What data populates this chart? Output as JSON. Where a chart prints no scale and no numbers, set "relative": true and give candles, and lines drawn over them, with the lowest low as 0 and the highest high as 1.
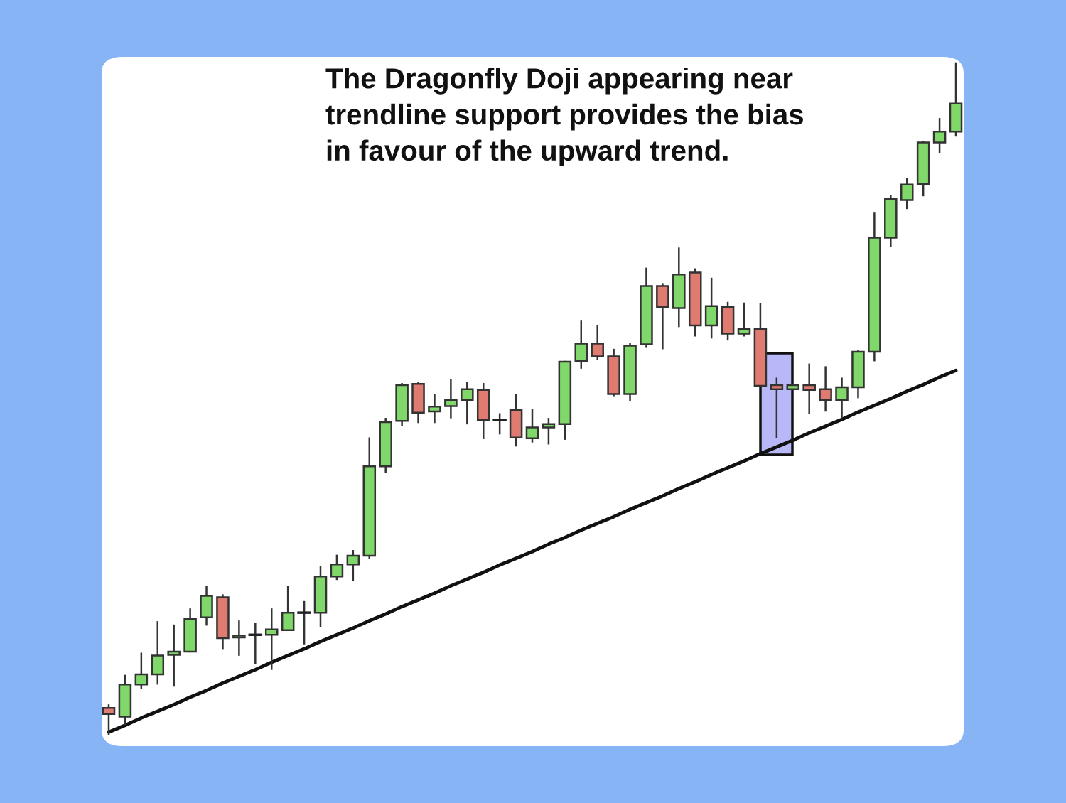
{
  "chart_data": {
    "type": "candlestick",
    "relative": true,
    "title": "The Dragonfly Doji appearing near\ntrendline support provides the bias\nin favour of the upward trend.",
    "categories": [
      null,
      null,
      null,
      null,
      null,
      null,
      null,
      null,
      null,
      null,
      null,
      null,
      null,
      null,
      null,
      null,
      null,
      null,
      null,
      null,
      null,
      null,
      null,
      null,
      null,
      null,
      null,
      null,
      null,
      null,
      null,
      null,
      null,
      null,
      null,
      null,
      null,
      null,
      null,
      null,
      null,
      null,
      null,
      null,
      null,
      null,
      null,
      null,
      null,
      null,
      null,
      null,
      null
    ],
    "ohlc": [
      [
        0.039,
        0.043,
        0.0,
        0.03
      ],
      [
        0.026,
        0.087,
        0.015,
        0.074
      ],
      [
        0.074,
        0.12,
        0.069,
        0.089
      ],
      [
        0.089,
        0.167,
        0.075,
        0.117
      ],
      [
        0.118,
        0.162,
        0.072,
        0.123
      ],
      [
        0.123,
        0.186,
        0.123,
        0.172
      ],
      [
        0.174,
        0.219,
        0.163,
        0.206
      ],
      [
        0.204,
        0.207,
        0.128,
        0.143
      ],
      [
        0.144,
        0.168,
        0.118,
        0.147
      ],
      [
        0.148,
        0.165,
        0.106,
        0.148
      ],
      [
        0.148,
        0.186,
        0.097,
        0.156
      ],
      [
        0.155,
        0.219,
        0.155,
        0.181
      ],
      [
        0.181,
        0.197,
        0.135,
        0.181
      ],
      [
        0.181,
        0.249,
        0.161,
        0.235
      ],
      [
        0.235,
        0.266,
        0.231,
        0.253
      ],
      [
        0.253,
        0.273,
        0.229,
        0.266
      ],
      [
        0.266,
        0.441,
        0.262,
        0.399
      ],
      [
        0.399,
        0.47,
        0.391,
        0.465
      ],
      [
        0.467,
        0.522,
        0.461,
        0.52
      ],
      [
        0.522,
        0.524,
        0.465,
        0.479
      ],
      [
        0.481,
        0.506,
        0.465,
        0.488
      ],
      [
        0.489,
        0.528,
        0.472,
        0.498
      ],
      [
        0.498,
        0.524,
        0.463,
        0.514
      ],
      [
        0.513,
        0.522,
        0.441,
        0.468
      ],
      [
        0.468,
        0.477,
        0.448,
        0.468
      ],
      [
        0.483,
        0.506,
        0.43,
        0.442
      ],
      [
        0.441,
        0.483,
        0.436,
        0.457
      ],
      [
        0.457,
        0.47,
        0.433,
        0.462
      ],
      [
        0.462,
        0.555,
        0.44,
        0.555
      ],
      [
        0.556,
        0.615,
        0.546,
        0.582
      ],
      [
        0.582,
        0.608,
        0.559,
        0.563
      ],
      [
        0.563,
        0.573,
        0.505,
        0.507
      ],
      [
        0.507,
        0.582,
        0.497,
        0.579
      ],
      [
        0.581,
        0.694,
        0.577,
        0.668
      ],
      [
        0.668,
        0.671,
        0.575,
        0.637
      ],
      [
        0.635,
        0.724,
        0.608,
        0.685
      ],
      [
        0.688,
        0.693,
        0.594,
        0.609
      ],
      [
        0.609,
        0.679,
        0.591,
        0.638
      ],
      [
        0.637,
        0.643,
        0.588,
        0.597
      ],
      [
        0.597,
        0.642,
        0.594,
        0.604
      ],
      [
        0.604,
        0.641,
        0.519,
        0.519
      ],
      [
        0.52,
        0.53,
        0.442,
        0.514
      ],
      [
        0.514,
        0.52,
        0.514,
        0.52
      ],
      [
        0.52,
        0.551,
        0.478,
        0.513
      ],
      [
        0.514,
        0.547,
        0.482,
        0.498
      ],
      [
        0.498,
        0.53,
        0.472,
        0.517
      ],
      [
        0.517,
        0.571,
        0.502,
        0.57
      ],
      [
        0.57,
        0.776,
        0.557,
        0.74
      ],
      [
        0.74,
        0.802,
        0.728,
        0.798
      ],
      [
        0.796,
        0.828,
        0.784,
        0.819
      ],
      [
        0.82,
        0.883,
        0.803,
        0.882
      ],
      [
        0.882,
        0.917,
        0.867,
        0.898
      ],
      [
        0.898,
        1.0,
        0.892,
        0.94
      ]
    ],
    "colors": [
      "#e07b72",
      "#80d86a",
      "#80d86a",
      "#80d86a",
      "#80d86a",
      "#80d86a",
      "#80d86a",
      "#e07b72",
      "#80d86a",
      "#222222",
      "#80d86a",
      "#80d86a",
      "#222222",
      "#80d86a",
      "#80d86a",
      "#80d86a",
      "#80d86a",
      "#80d86a",
      "#80d86a",
      "#e07b72",
      "#80d86a",
      "#80d86a",
      "#80d86a",
      "#e07b72",
      "#222222",
      "#e07b72",
      "#80d86a",
      "#80d86a",
      "#80d86a",
      "#80d86a",
      "#e07b72",
      "#e07b72",
      "#80d86a",
      "#80d86a",
      "#e07b72",
      "#80d86a",
      "#e07b72",
      "#80d86a",
      "#e07b72",
      "#80d86a",
      "#e07b72",
      "#e07b72",
      "#80d86a",
      "#e07b72",
      "#e07b72",
      "#80d86a",
      "#80d86a",
      "#80d86a",
      "#80d86a",
      "#80d86a",
      "#80d86a",
      "#80d86a",
      "#80d86a"
    ],
    "series": [
      {
        "type": "line",
        "color": "#111111",
        "line_style": "solid",
        "values": [
          0.003,
          0.013,
          0.024,
          0.034,
          0.044,
          0.055,
          0.065,
          0.076,
          0.086,
          0.096,
          0.107,
          0.117,
          0.127,
          0.138,
          0.148,
          0.158,
          0.169,
          0.179,
          0.19,
          0.2,
          0.21,
          0.221,
          0.231,
          0.241,
          0.252,
          0.262,
          0.272,
          0.283,
          0.293,
          0.304,
          0.314,
          0.324,
          0.335,
          0.345,
          0.355,
          0.366,
          0.376,
          0.387,
          0.397,
          0.407,
          0.418,
          0.428,
          0.438,
          0.449,
          0.459,
          0.469,
          0.48,
          0.49,
          0.5,
          0.511,
          0.521,
          0.532,
          0.542
        ]
      }
    ]
  }
}
